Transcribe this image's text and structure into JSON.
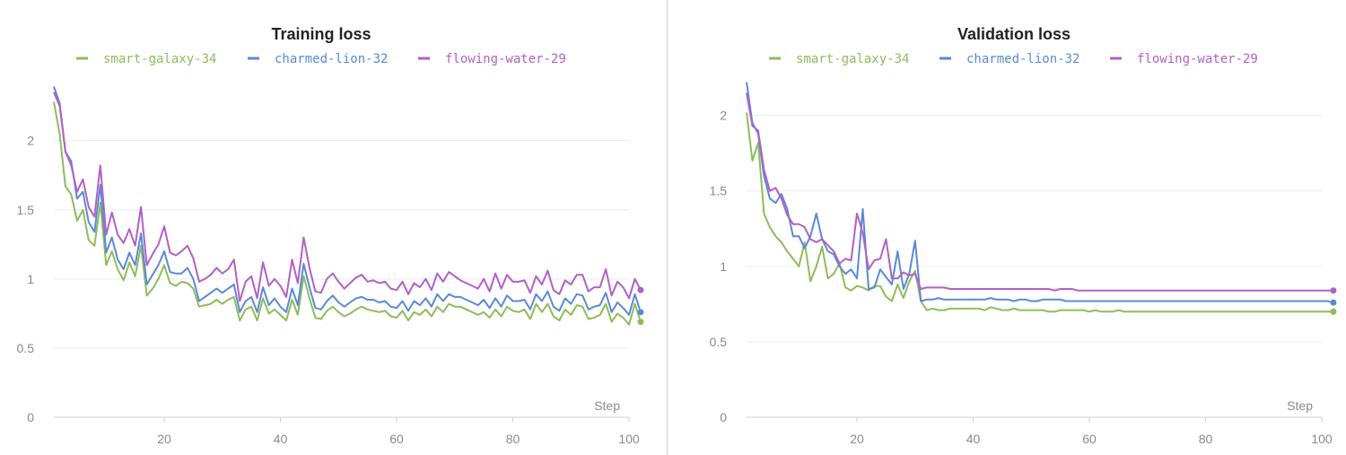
{
  "chart_data": [
    {
      "type": "line",
      "title": "Training loss",
      "xlabel": "Step",
      "ylabel": "",
      "xlim": [
        1,
        100
      ],
      "ylim": [
        0,
        2.4
      ],
      "xticks": [
        20,
        40,
        60,
        80,
        100
      ],
      "yticks": [
        0,
        0.5,
        1,
        1.5,
        2
      ],
      "legend_position": "top",
      "series": [
        {
          "name": "smart-galaxy-34",
          "color": "#8fbc5a",
          "values": [
            2.28,
            2.05,
            1.67,
            1.61,
            1.42,
            1.5,
            1.28,
            1.24,
            1.55,
            1.1,
            1.2,
            1.07,
            0.99,
            1.12,
            1.02,
            1.24,
            0.88,
            0.93,
            1.0,
            1.1,
            0.97,
            0.95,
            0.98,
            0.97,
            0.93,
            0.8,
            0.81,
            0.82,
            0.85,
            0.82,
            0.85,
            0.87,
            0.7,
            0.78,
            0.8,
            0.7,
            0.86,
            0.75,
            0.78,
            0.74,
            0.7,
            0.85,
            0.74,
            1.02,
            0.86,
            0.72,
            0.71,
            0.77,
            0.8,
            0.76,
            0.73,
            0.75,
            0.78,
            0.8,
            0.78,
            0.77,
            0.76,
            0.77,
            0.73,
            0.72,
            0.77,
            0.7,
            0.76,
            0.74,
            0.78,
            0.73,
            0.8,
            0.76,
            0.82,
            0.8,
            0.8,
            0.78,
            0.76,
            0.74,
            0.76,
            0.72,
            0.78,
            0.73,
            0.8,
            0.77,
            0.76,
            0.78,
            0.71,
            0.82,
            0.76,
            0.82,
            0.73,
            0.7,
            0.78,
            0.74,
            0.81,
            0.8,
            0.71,
            0.72,
            0.74,
            0.82,
            0.69,
            0.75,
            0.72,
            0.67,
            0.82,
            0.69
          ]
        },
        {
          "name": "charmed-lion-32",
          "color": "#5a8ad6",
          "values": [
            2.39,
            2.27,
            1.92,
            1.85,
            1.58,
            1.63,
            1.41,
            1.34,
            1.68,
            1.19,
            1.3,
            1.14,
            1.07,
            1.19,
            1.1,
            1.33,
            0.96,
            1.03,
            1.1,
            1.2,
            1.05,
            1.04,
            1.04,
            1.08,
            1.0,
            0.84,
            0.87,
            0.9,
            0.93,
            0.9,
            0.93,
            0.96,
            0.76,
            0.84,
            0.87,
            0.76,
            0.94,
            0.81,
            0.86,
            0.8,
            0.76,
            0.93,
            0.81,
            1.11,
            0.94,
            0.79,
            0.78,
            0.84,
            0.88,
            0.83,
            0.8,
            0.83,
            0.86,
            0.87,
            0.85,
            0.85,
            0.83,
            0.84,
            0.8,
            0.79,
            0.84,
            0.77,
            0.84,
            0.81,
            0.86,
            0.8,
            0.89,
            0.84,
            0.89,
            0.87,
            0.87,
            0.85,
            0.83,
            0.81,
            0.85,
            0.79,
            0.86,
            0.8,
            0.88,
            0.84,
            0.84,
            0.85,
            0.78,
            0.89,
            0.84,
            0.91,
            0.8,
            0.77,
            0.86,
            0.82,
            0.89,
            0.88,
            0.78,
            0.8,
            0.81,
            0.9,
            0.76,
            0.83,
            0.79,
            0.74,
            0.89,
            0.76
          ]
        },
        {
          "name": "flowing-water-29",
          "color": "#b45fc6",
          "values": [
            2.35,
            2.25,
            1.92,
            1.82,
            1.63,
            1.72,
            1.52,
            1.45,
            1.82,
            1.32,
            1.48,
            1.32,
            1.26,
            1.36,
            1.24,
            1.52,
            1.1,
            1.18,
            1.25,
            1.38,
            1.19,
            1.17,
            1.2,
            1.24,
            1.15,
            0.98,
            1.0,
            1.03,
            1.08,
            1.04,
            1.07,
            1.14,
            0.84,
            0.98,
            1.02,
            0.86,
            1.12,
            0.95,
            1.0,
            0.95,
            0.87,
            1.14,
            0.97,
            1.3,
            1.08,
            0.91,
            0.9,
            1.0,
            1.04,
            0.98,
            0.93,
            0.97,
            1.01,
            1.03,
            0.98,
            0.99,
            0.97,
            0.98,
            0.93,
            0.92,
            0.98,
            0.89,
            0.97,
            0.94,
            1.0,
            0.92,
            1.04,
            0.98,
            1.05,
            1.02,
            0.99,
            0.97,
            0.95,
            0.93,
            1.0,
            0.91,
            1.04,
            0.93,
            1.03,
            0.98,
            0.98,
            0.99,
            0.9,
            1.02,
            0.96,
            1.06,
            0.92,
            0.89,
            0.99,
            0.96,
            1.03,
            1.03,
            0.91,
            0.94,
            0.94,
            1.07,
            0.88,
            0.98,
            0.94,
            0.86,
            1.0,
            0.92
          ]
        }
      ]
    },
    {
      "type": "line",
      "title": "Validation loss",
      "xlabel": "Step",
      "ylabel": "",
      "xlim": [
        1,
        100
      ],
      "ylim": [
        0,
        2.2
      ],
      "xticks": [
        20,
        40,
        60,
        80,
        100
      ],
      "yticks": [
        0,
        0.5,
        1,
        1.5,
        2
      ],
      "legend_position": "top",
      "series": [
        {
          "name": "smart-galaxy-34",
          "color": "#8fbc5a",
          "values": [
            2.02,
            1.7,
            1.82,
            1.35,
            1.26,
            1.2,
            1.16,
            1.1,
            1.05,
            1.0,
            1.16,
            0.9,
            1.0,
            1.13,
            0.92,
            0.95,
            1.02,
            0.86,
            0.84,
            0.87,
            0.86,
            0.84,
            0.87,
            0.87,
            0.8,
            0.77,
            0.88,
            0.79,
            0.9,
            0.97,
            0.77,
            0.71,
            0.72,
            0.71,
            0.71,
            0.72,
            0.72,
            0.72,
            0.72,
            0.72,
            0.72,
            0.71,
            0.73,
            0.72,
            0.71,
            0.71,
            0.72,
            0.71,
            0.71,
            0.71,
            0.71,
            0.71,
            0.7,
            0.7,
            0.71,
            0.71,
            0.71,
            0.71,
            0.71,
            0.7,
            0.71,
            0.7,
            0.7,
            0.7,
            0.71,
            0.7,
            0.7,
            0.7,
            0.7,
            0.7,
            0.7,
            0.7,
            0.7,
            0.7,
            0.7,
            0.7,
            0.7,
            0.7,
            0.7,
            0.7,
            0.7,
            0.7,
            0.7,
            0.7,
            0.7,
            0.7,
            0.7,
            0.7,
            0.7,
            0.7,
            0.7,
            0.7,
            0.7,
            0.7,
            0.7,
            0.7,
            0.7,
            0.7,
            0.7,
            0.7,
            0.7,
            0.7
          ]
        },
        {
          "name": "charmed-lion-32",
          "color": "#5a8ad6",
          "values": [
            2.22,
            1.95,
            1.88,
            1.6,
            1.45,
            1.42,
            1.48,
            1.38,
            1.2,
            1.2,
            1.12,
            1.2,
            1.35,
            1.18,
            1.1,
            1.08,
            1.0,
            0.95,
            0.98,
            0.92,
            1.38,
            0.85,
            0.86,
            0.98,
            0.93,
            0.88,
            1.1,
            0.85,
            0.95,
            1.17,
            0.77,
            0.78,
            0.78,
            0.79,
            0.78,
            0.78,
            0.78,
            0.78,
            0.78,
            0.78,
            0.78,
            0.78,
            0.79,
            0.78,
            0.78,
            0.78,
            0.77,
            0.78,
            0.78,
            0.77,
            0.77,
            0.78,
            0.78,
            0.78,
            0.78,
            0.77,
            0.77,
            0.77,
            0.77,
            0.77,
            0.77,
            0.77,
            0.77,
            0.77,
            0.77,
            0.77,
            0.77,
            0.77,
            0.77,
            0.77,
            0.77,
            0.77,
            0.77,
            0.77,
            0.77,
            0.77,
            0.77,
            0.77,
            0.77,
            0.77,
            0.77,
            0.77,
            0.77,
            0.77,
            0.77,
            0.77,
            0.77,
            0.77,
            0.77,
            0.77,
            0.77,
            0.77,
            0.77,
            0.77,
            0.77,
            0.77,
            0.77,
            0.77,
            0.77,
            0.77,
            0.77,
            0.76
          ]
        },
        {
          "name": "flowing-water-29",
          "color": "#b45fc6",
          "values": [
            2.15,
            1.93,
            1.9,
            1.64,
            1.5,
            1.52,
            1.45,
            1.34,
            1.28,
            1.28,
            1.26,
            1.18,
            1.16,
            1.18,
            1.14,
            1.1,
            1.02,
            1.05,
            1.04,
            1.35,
            1.22,
            0.98,
            1.04,
            1.05,
            1.18,
            0.92,
            0.92,
            0.96,
            0.94,
            0.95,
            0.85,
            0.86,
            0.86,
            0.86,
            0.86,
            0.85,
            0.85,
            0.85,
            0.85,
            0.85,
            0.85,
            0.85,
            0.85,
            0.85,
            0.85,
            0.85,
            0.85,
            0.85,
            0.85,
            0.85,
            0.85,
            0.85,
            0.85,
            0.84,
            0.85,
            0.85,
            0.85,
            0.84,
            0.84,
            0.84,
            0.84,
            0.84,
            0.84,
            0.84,
            0.84,
            0.84,
            0.84,
            0.84,
            0.84,
            0.84,
            0.84,
            0.84,
            0.84,
            0.84,
            0.84,
            0.84,
            0.84,
            0.84,
            0.84,
            0.84,
            0.84,
            0.84,
            0.84,
            0.84,
            0.84,
            0.84,
            0.84,
            0.84,
            0.84,
            0.84,
            0.84,
            0.84,
            0.84,
            0.84,
            0.84,
            0.84,
            0.84,
            0.84,
            0.84,
            0.84,
            0.84,
            0.84
          ]
        }
      ]
    }
  ]
}
